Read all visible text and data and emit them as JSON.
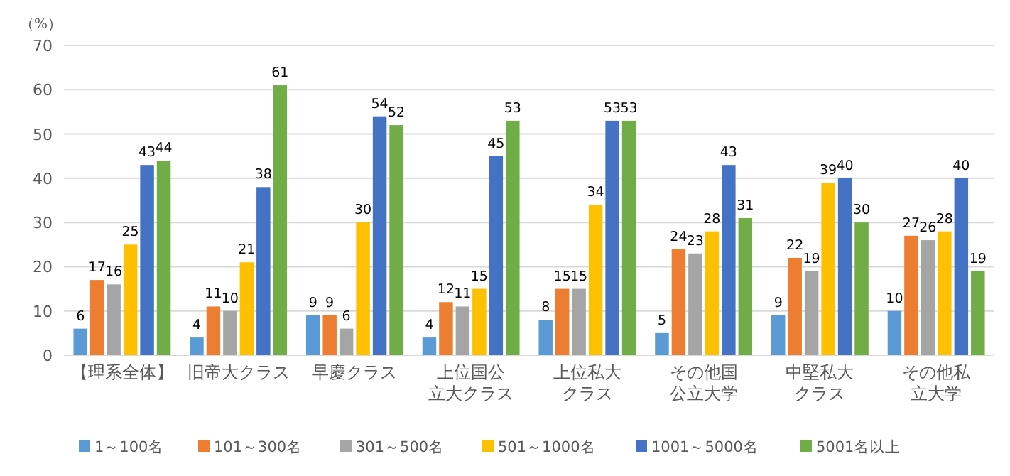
{
  "chart_data": {
    "type": "bar",
    "ylabel": "（%）",
    "categories": [
      "【理系全体】",
      "旧帝大クラス",
      "早慶クラス",
      "上位国公立大クラス",
      "上位私大クラス",
      "その他国公立大学",
      "中堅私大クラス",
      "その他私立大学"
    ],
    "series": [
      {
        "name": "1～100名",
        "color": "#5b9bd5",
        "values": [
          6,
          4,
          9,
          4,
          8,
          5,
          9,
          10
        ]
      },
      {
        "name": "101～300名",
        "color": "#ed7d31",
        "values": [
          17,
          11,
          9,
          12,
          15,
          24,
          22,
          27
        ]
      },
      {
        "name": "301～500名",
        "color": "#a5a5a5",
        "values": [
          16,
          10,
          6,
          11,
          15,
          23,
          19,
          26
        ]
      },
      {
        "name": "501～1000名",
        "color": "#ffc000",
        "values": [
          25,
          21,
          30,
          15,
          34,
          28,
          39,
          28
        ]
      },
      {
        "name": "1001～5000名",
        "color": "#4472c4",
        "values": [
          43,
          38,
          54,
          45,
          53,
          43,
          40,
          40
        ]
      },
      {
        "name": "5001名以上",
        "color": "#70ad47",
        "values": [
          44,
          61,
          52,
          53,
          53,
          31,
          30,
          19
        ]
      }
    ],
    "ylim": [
      0,
      70
    ],
    "yticks": [
      0,
      10,
      20,
      30,
      40,
      50,
      60,
      70
    ],
    "grid": "y",
    "legend": "bottom",
    "data_labels": true
  }
}
